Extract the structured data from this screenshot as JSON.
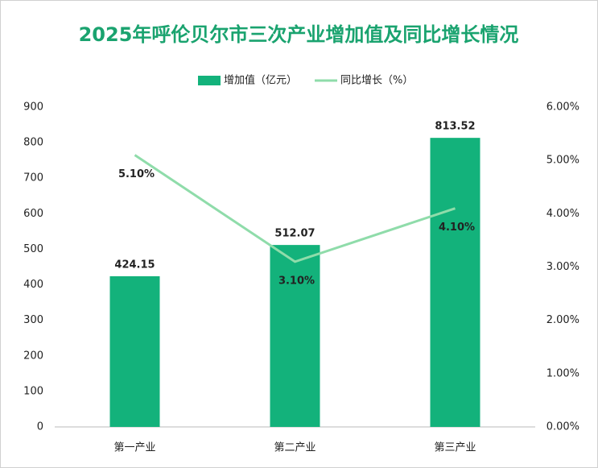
{
  "chart_data": {
    "type": "bar",
    "title": "2025年呼伦贝尔市三次产业增加值及同比增长情况",
    "categories": [
      "第一产业",
      "第二产业",
      "第三产业"
    ],
    "series": [
      {
        "name": "增加值（亿元）",
        "type": "bar",
        "color": "#13b27b",
        "values": [
          424.15,
          512.07,
          813.52
        ]
      },
      {
        "name": "同比增长（%）",
        "type": "line",
        "axis": "y2",
        "color": "#8fdcaa",
        "values": [
          5.1,
          3.1,
          4.1
        ],
        "value_labels": [
          "5.10%",
          "3.10%",
          "4.10%"
        ]
      }
    ],
    "ylim": [
      0,
      900
    ],
    "yticks": [
      0,
      100,
      200,
      300,
      400,
      500,
      600,
      700,
      800,
      900
    ],
    "y2lim": [
      0,
      6
    ],
    "y2ticks": [
      {
        "value": 0,
        "label": "0.00%"
      },
      {
        "value": 1,
        "label": "1.00%"
      },
      {
        "value": 2,
        "label": "2.00%"
      },
      {
        "value": 3,
        "label": "3.00%"
      },
      {
        "value": 4,
        "label": "4.00%"
      },
      {
        "value": 5,
        "label": "5.00%"
      },
      {
        "value": 6,
        "label": "6.00%"
      }
    ],
    "grid": false,
    "legend": "top"
  }
}
